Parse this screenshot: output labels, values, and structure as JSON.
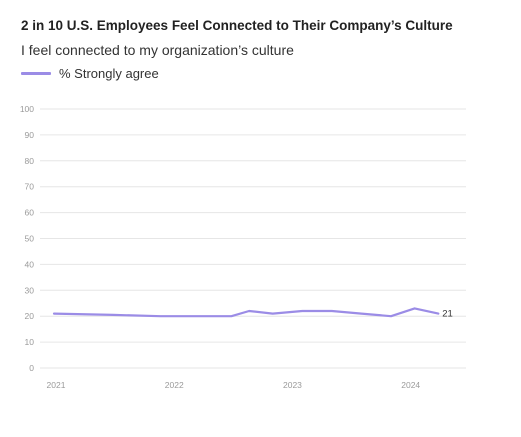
{
  "header": {
    "title": "2 in 10 U.S. Employees Feel Connected to Their Company’s Culture",
    "subtitle": "I feel connected to my organization’s culture"
  },
  "colors": {
    "series": "#9b8ce6",
    "grid": "#e6e6e6",
    "axis_text": "#9a9a9a"
  },
  "chart_data": {
    "type": "line",
    "title": "2 in 10 U.S. Employees Feel Connected to Their Company’s Culture",
    "subtitle": "I feel connected to my organization’s culture",
    "xlabel": "",
    "ylabel": "",
    "ylim": [
      0,
      100
    ],
    "yticks": [
      0,
      10,
      20,
      30,
      40,
      50,
      60,
      70,
      80,
      90,
      100
    ],
    "xlim": [
      2021.0,
      2024.4
    ],
    "xticks": [
      {
        "value": 2021,
        "label": "2021"
      },
      {
        "value": 2022,
        "label": "2022"
      },
      {
        "value": 2023,
        "label": "2023"
      },
      {
        "value": 2024,
        "label": "2024"
      }
    ],
    "grid": true,
    "legend": "top-left",
    "series": [
      {
        "name": "% Strongly agree",
        "x": [
          2021.0,
          2021.5,
          2021.9,
          2022.25,
          2022.5,
          2022.65,
          2022.85,
          2023.1,
          2023.35,
          2023.6,
          2023.85,
          2024.05,
          2024.25
        ],
        "y": [
          21,
          20.5,
          20,
          20,
          20,
          22,
          21,
          22,
          22,
          21,
          20,
          23,
          21
        ],
        "end_label": "21"
      }
    ]
  }
}
